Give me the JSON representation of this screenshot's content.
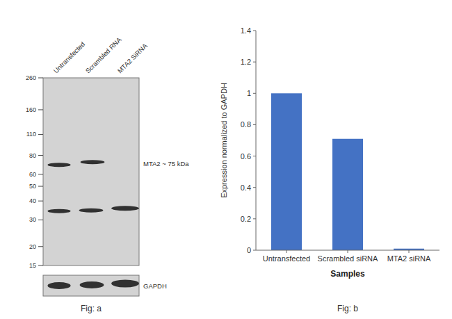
{
  "chart_data": [
    {
      "type": "blot",
      "title": "Fig: a",
      "categories": [
        "Untransfected",
        "Scrambled RNA",
        "MTA2 SiRNA"
      ],
      "log": "y",
      "ylim": [
        15,
        260
      ],
      "yticks": [
        260,
        160,
        110,
        80,
        60,
        50,
        40,
        30,
        20,
        15
      ],
      "annotations": [
        "MTA2 ~ 75 kDa",
        "GAPDH"
      ],
      "color": "#1a1a1a"
    },
    {
      "type": "bar",
      "title": "Fig: b",
      "categories": [
        "Untransfected",
        "Scrambled siRNA",
        "MTA2 siRNA"
      ],
      "values": [
        1.0,
        0.71,
        0.01
      ],
      "color": "#4472c4",
      "xlabel": "Samples",
      "ylabel": "Expression normalized to GAPDH",
      "ylim": [
        0,
        1.4
      ],
      "yticks": [
        0,
        0.2,
        0.4,
        0.6,
        0.8,
        1.0,
        1.2,
        1.4
      ]
    }
  ]
}
